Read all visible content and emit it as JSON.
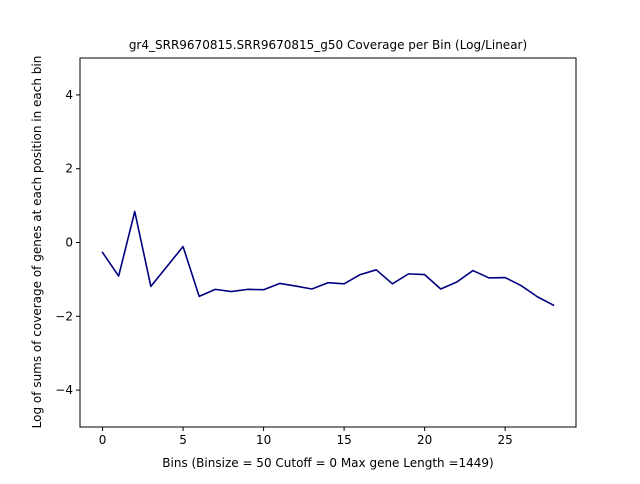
{
  "chart_data": {
    "type": "line",
    "title": "gr4_SRR9670815.SRR9670815_g50 Coverage per Bin (Log/Linear)",
    "xlabel": "Bins  (Binsize = 50 Cutoff = 0 Max gene Length =1449)",
    "ylabel": "Log of sums of coverage of genes at each position in each bin",
    "xlim": [
      -1.4,
      29.4
    ],
    "ylim": [
      -5,
      5
    ],
    "xticks": [
      0,
      5,
      10,
      15,
      20,
      25
    ],
    "yticks": [
      -4,
      -2,
      0,
      2,
      4
    ],
    "grid": false,
    "line_color": "#000080",
    "series": [
      {
        "x": [
          0,
          1,
          2,
          3,
          4,
          5,
          6,
          7,
          8,
          9,
          10,
          11,
          12,
          13,
          14,
          15,
          16,
          17,
          18,
          19,
          20,
          21,
          22,
          23,
          24,
          25,
          26,
          27,
          28
        ],
        "values": [
          -0.27,
          -0.91,
          0.84,
          -1.19,
          -0.65,
          -0.11,
          -1.46,
          -1.27,
          -1.33,
          -1.27,
          -1.28,
          -1.11,
          -1.18,
          -1.26,
          -1.09,
          -1.12,
          -0.87,
          -0.74,
          -1.12,
          -0.85,
          -0.87,
          -1.26,
          -1.07,
          -0.76,
          -0.96,
          -0.95,
          -1.17,
          -1.47,
          -1.7
        ]
      }
    ]
  }
}
